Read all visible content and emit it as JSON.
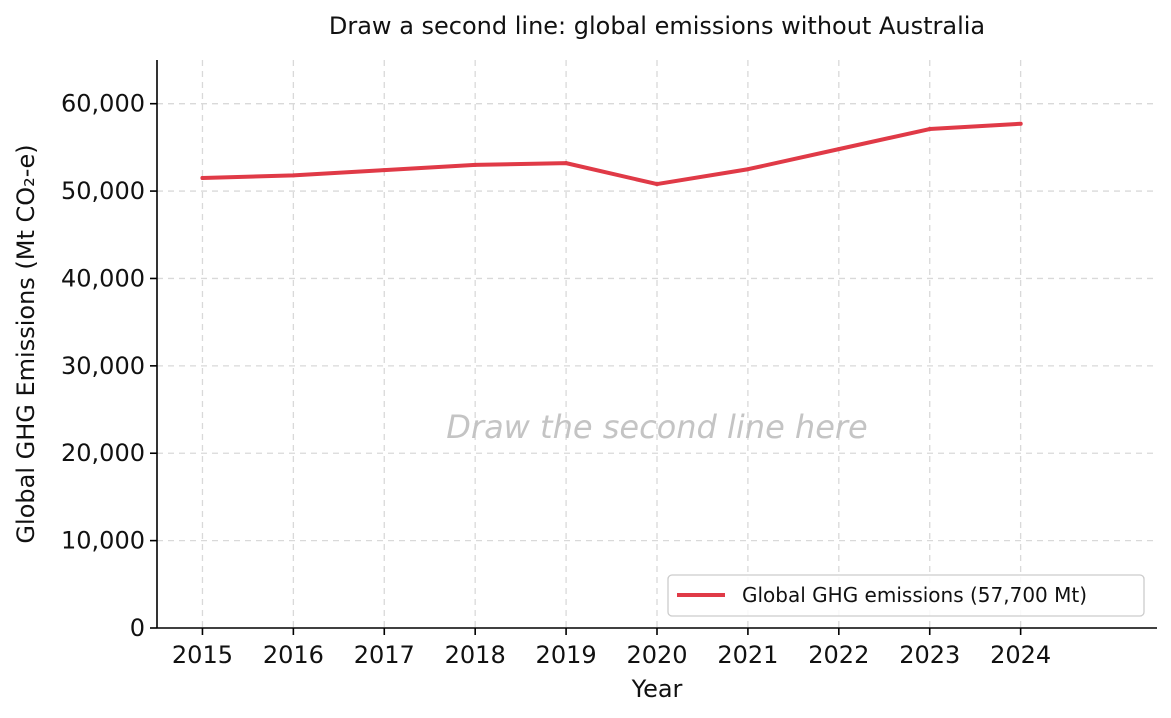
{
  "chart_data": {
    "type": "line",
    "title": "Draw a second line: global emissions without Australia",
    "xlabel": "Year",
    "ylabel": "Global GHG Emissions (Mt CO₂-e)",
    "x": [
      2015,
      2016,
      2017,
      2018,
      2019,
      2020,
      2021,
      2022,
      2023,
      2024
    ],
    "xlim": [
      2014.5,
      2025.5
    ],
    "ylim": [
      0,
      65000
    ],
    "y_ticks": [
      0,
      10000,
      20000,
      30000,
      40000,
      50000,
      60000
    ],
    "y_tick_labels": [
      "0",
      "10,000",
      "20,000",
      "30,000",
      "40,000",
      "50,000",
      "60,000"
    ],
    "x_tick_labels": [
      "2015",
      "2016",
      "2017",
      "2018",
      "2019",
      "2020",
      "2021",
      "2022",
      "2023",
      "2024"
    ],
    "grid": true,
    "legend_position": "bottom-right",
    "series": [
      {
        "name": "Global GHG emissions (57,700 Mt)",
        "color": "#e03a47",
        "values": [
          51500,
          51800,
          52400,
          53000,
          53200,
          50800,
          52500,
          54800,
          57100,
          57700
        ]
      }
    ],
    "annotation": "Draw the second line here"
  }
}
